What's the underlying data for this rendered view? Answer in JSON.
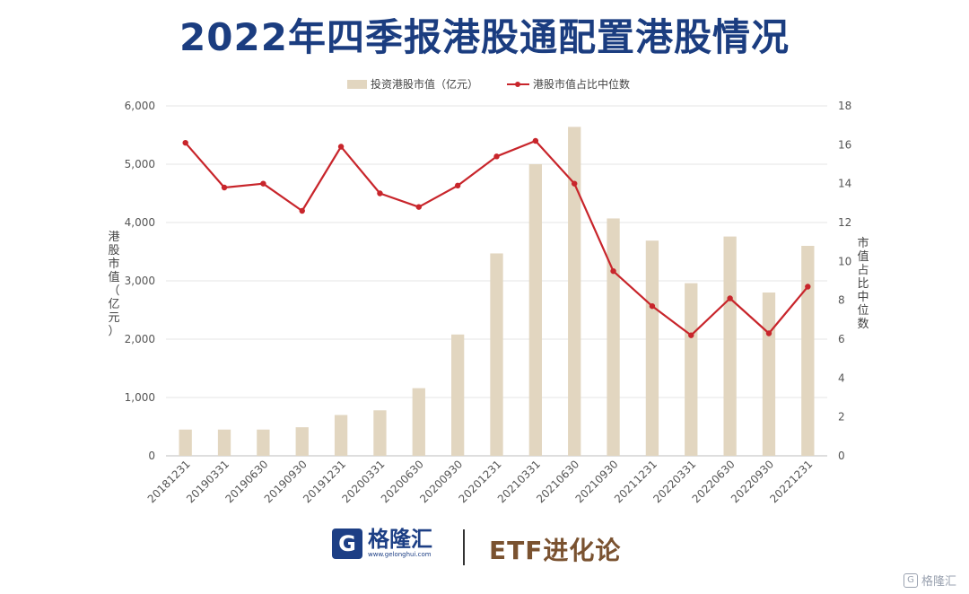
{
  "title": "2022年四季报港股通配置港股情况",
  "chart_data": {
    "type": "bar",
    "categories": [
      "20181231",
      "20190331",
      "20190630",
      "20190930",
      "20191231",
      "20200331",
      "20200630",
      "20200930",
      "20201231",
      "20210331",
      "20210630",
      "20210930",
      "20211231",
      "20220331",
      "20220630",
      "20220930",
      "20221231"
    ],
    "series": [
      {
        "name": "投资港股市值（亿元）",
        "type": "bar",
        "axis": "left",
        "color": "#e2d6c0",
        "values": [
          450,
          450,
          450,
          490,
          700,
          780,
          1160,
          2080,
          3470,
          5000,
          5640,
          4070,
          3690,
          2960,
          3760,
          2800,
          3600
        ]
      },
      {
        "name": "港股市值占比中位数",
        "type": "line",
        "axis": "right",
        "color": "#c8252b",
        "values": [
          16.1,
          13.8,
          14.0,
          12.6,
          15.9,
          13.5,
          12.8,
          13.9,
          15.4,
          16.2,
          14.0,
          9.5,
          7.7,
          6.2,
          8.1,
          6.3,
          8.7
        ]
      }
    ],
    "ylabel_left": "港股市值（亿元）",
    "ylabel_right": "市值占比中位数",
    "ylim_left": [
      0,
      6000
    ],
    "ylim_right": [
      0,
      18
    ],
    "yticks_left": [
      "0",
      "1,000",
      "2,000",
      "3,000",
      "4,000",
      "5,000",
      "6,000"
    ],
    "yticks_right": [
      "0",
      "2",
      "4",
      "6",
      "8",
      "10",
      "12",
      "14",
      "16",
      "18"
    ],
    "grid": true,
    "legend_position": "top"
  },
  "footer": {
    "logo_mark": "G",
    "logo_name": "格隆汇",
    "logo_url": "www.gelonghui.com",
    "brand2": "ETF进化论"
  },
  "watermark": {
    "icon": "G",
    "text": "格隆汇"
  }
}
